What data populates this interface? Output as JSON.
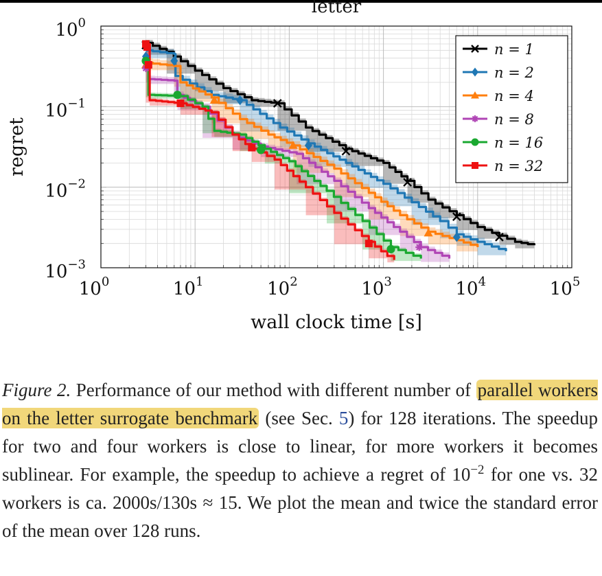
{
  "chart_data": {
    "type": "line",
    "title": "letter",
    "xlabel": "wall clock time [s]",
    "ylabel": "regret",
    "x_scale": "log",
    "y_scale": "log",
    "xlim": [
      1,
      100000
    ],
    "ylim": [
      0.001,
      1
    ],
    "grid": true,
    "legend_position": "top-right",
    "x_ticks": [
      {
        "v": 1,
        "base": "10",
        "exp": "0"
      },
      {
        "v": 10,
        "base": "10",
        "exp": "1"
      },
      {
        "v": 100,
        "base": "10",
        "exp": "2"
      },
      {
        "v": 1000,
        "base": "10",
        "exp": "3"
      },
      {
        "v": 10000,
        "base": "10",
        "exp": "4"
      },
      {
        "v": 100000,
        "base": "10",
        "exp": "5"
      }
    ],
    "y_ticks": [
      {
        "v": 1,
        "base": "10",
        "exp": "0"
      },
      {
        "v": 0.1,
        "base": "10",
        "exp": "−1"
      },
      {
        "v": 0.01,
        "base": "10",
        "exp": "−2"
      },
      {
        "v": 0.001,
        "base": "10",
        "exp": "−3"
      }
    ],
    "series": [
      {
        "name": "n = 1",
        "color": "#000000",
        "marker": "cross",
        "x": [
          3,
          5,
          10,
          20,
          40,
          75,
          150,
          400,
          1000,
          1800,
          3000,
          6000,
          10000,
          17000,
          25000,
          40000
        ],
        "y": [
          0.62,
          0.48,
          0.28,
          0.17,
          0.12,
          0.11,
          0.055,
          0.03,
          0.02,
          0.012,
          0.007,
          0.0045,
          0.0032,
          0.0025,
          0.0021,
          0.0019
        ],
        "band": 0.09
      },
      {
        "name": "n = 2",
        "color": "#1f77b4",
        "marker": "diamond",
        "x": [
          3,
          6,
          6.2,
          15,
          30,
          80,
          160,
          400,
          1000,
          2000,
          4000,
          6000,
          10000,
          20000
        ],
        "y": [
          0.5,
          0.45,
          0.24,
          0.14,
          0.12,
          0.055,
          0.035,
          0.02,
          0.011,
          0.0065,
          0.0038,
          0.0026,
          0.0021,
          0.0016
        ],
        "band": 0.12
      },
      {
        "name": "n = 4",
        "color": "#ff7f0e",
        "marker": "triangle",
        "x": [
          3,
          6,
          7,
          15,
          30,
          60,
          110,
          300,
          700,
          1500,
          3000,
          6000,
          10000
        ],
        "y": [
          0.35,
          0.32,
          0.2,
          0.13,
          0.07,
          0.045,
          0.033,
          0.017,
          0.0085,
          0.0045,
          0.0028,
          0.0022,
          0.0018
        ],
        "band": 0.13
      },
      {
        "name": "n = 8",
        "color": "#b045b5",
        "marker": "star",
        "x": [
          3,
          3.2,
          6,
          6.5,
          12,
          25,
          50,
          120,
          300,
          700,
          1500,
          2500,
          5000
        ],
        "y": [
          0.3,
          0.22,
          0.21,
          0.14,
          0.1,
          0.045,
          0.032,
          0.026,
          0.012,
          0.0055,
          0.0028,
          0.0018,
          0.0013
        ],
        "band": 0.1
      },
      {
        "name": "n = 16",
        "color": "#1aa830",
        "marker": "circle",
        "x": [
          3,
          3.2,
          7,
          12,
          16,
          30,
          55,
          100,
          250,
          600,
          1200,
          2500
        ],
        "y": [
          0.37,
          0.14,
          0.135,
          0.1,
          0.05,
          0.045,
          0.03,
          0.021,
          0.009,
          0.0038,
          0.0018,
          0.0013
        ],
        "band": 0.07
      },
      {
        "name": "n = 32",
        "color": "#ee1111",
        "marker": "square",
        "x": [
          3,
          3.3,
          7,
          15,
          25,
          40,
          70,
          150,
          300,
          700,
          1100,
          1300
        ],
        "y": [
          0.55,
          0.12,
          0.11,
          0.085,
          0.045,
          0.03,
          0.022,
          0.01,
          0.0048,
          0.0021,
          0.0014,
          0.00125
        ],
        "band": 0.07
      }
    ],
    "markers": [
      {
        "s": 0,
        "x": [
          3,
          75,
          400,
          1800,
          6000,
          17000
        ],
        "y": [
          0.58,
          0.11,
          0.028,
          0.0115,
          0.0043,
          0.0024
        ]
      },
      {
        "s": 1,
        "x": [
          3,
          6,
          30,
          160,
          6000
        ],
        "y": [
          0.42,
          0.37,
          0.12,
          0.033,
          0.0024
        ]
      },
      {
        "s": 2,
        "x": [
          3,
          16,
          110,
          3000
        ],
        "y": [
          0.33,
          0.12,
          0.033,
          0.0027
        ]
      },
      {
        "s": 3,
        "x": [
          3,
          2400
        ],
        "y": [
          0.3,
          0.0018
        ]
      },
      {
        "s": 4,
        "x": [
          3,
          6.5,
          50,
          1200
        ],
        "y": [
          0.37,
          0.14,
          0.029,
          0.0017
        ]
      },
      {
        "s": 5,
        "x": [
          3,
          3.1,
          3.2,
          7,
          40,
          700
        ],
        "y": [
          0.6,
          0.55,
          0.33,
          0.11,
          0.031,
          0.002
        ]
      }
    ]
  },
  "caption": {
    "label": "Figure 2.",
    "part1": " Performance of our method with different number of ",
    "highlight": "parallel workers on the letter surrogate benchmark",
    "part2": " (see Sec. ",
    "sec_ref": "5",
    "part3": ") for 128 iterations. The speedup for two and four workers is close to linear, for more workers it becomes sublinear. For example, the speedup to achieve a regret of 10",
    "exp": "−2",
    "part4": " for one vs. 32 workers is ca. 2000s/130s ≈ 15. We plot the mean and twice the standard error of the mean over 128 runs."
  }
}
